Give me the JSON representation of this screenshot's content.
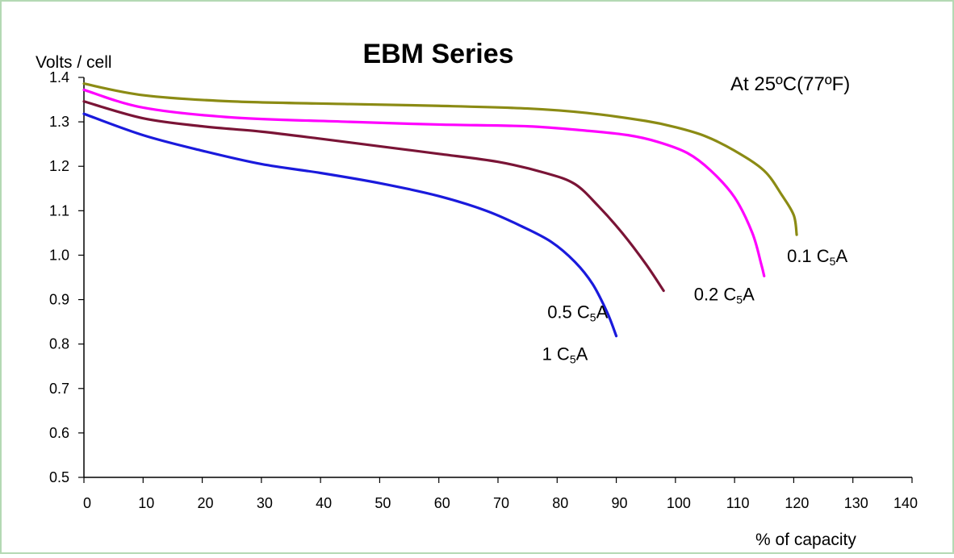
{
  "chart_data": {
    "type": "line",
    "title": "EBM Series",
    "annotation": "At 25ºC(77ºF)",
    "ylabel": "Volts / cell",
    "xlabel": "% of capacity",
    "xlim": [
      0,
      140
    ],
    "ylim": [
      0.5,
      1.4
    ],
    "xticks": [
      0,
      10,
      20,
      30,
      40,
      50,
      60,
      70,
      80,
      90,
      100,
      110,
      120,
      130,
      140
    ],
    "xtick_labels": [
      "0",
      "10",
      "20",
      "30",
      "40",
      "50",
      "60",
      "70",
      "80",
      "90",
      "100",
      "110",
      "120",
      "130",
      "140"
    ],
    "yticks": [
      0.5,
      0.6,
      0.7,
      0.8,
      0.9,
      1.0,
      1.1,
      1.2,
      1.3,
      1.4
    ],
    "ytick_labels": [
      "0.5",
      "0.6",
      "0.7",
      "0.8",
      "0.9",
      "1.0",
      "1.1",
      "1.2",
      "1.3",
      "1.4"
    ],
    "grid": false,
    "frame_color": "#b4d9b4",
    "series": [
      {
        "name": "0.1 C₅A",
        "label_main": "0.1 C",
        "label_sub": "5",
        "label_tail": "A",
        "color": "#8b8b14",
        "points": [
          [
            0,
            1.386
          ],
          [
            10,
            1.36
          ],
          [
            25,
            1.346
          ],
          [
            45,
            1.34
          ],
          [
            60,
            1.336
          ],
          [
            75,
            1.33
          ],
          [
            85,
            1.32
          ],
          [
            95,
            1.302
          ],
          [
            100,
            1.288
          ],
          [
            105,
            1.268
          ],
          [
            110,
            1.235
          ],
          [
            115,
            1.19
          ],
          [
            118,
            1.135
          ],
          [
            120,
            1.09
          ],
          [
            120.5,
            1.046
          ]
        ]
      },
      {
        "name": "0.2 C₅A",
        "label_main": "0.2 C",
        "label_sub": "5",
        "label_tail": "A",
        "color": "#ff00ff",
        "points": [
          [
            0,
            1.372
          ],
          [
            10,
            1.332
          ],
          [
            25,
            1.31
          ],
          [
            45,
            1.3
          ],
          [
            60,
            1.294
          ],
          [
            75,
            1.29
          ],
          [
            85,
            1.28
          ],
          [
            92,
            1.27
          ],
          [
            97,
            1.255
          ],
          [
            102,
            1.23
          ],
          [
            106,
            1.19
          ],
          [
            110,
            1.13
          ],
          [
            113,
            1.05
          ],
          [
            114.5,
            0.98
          ],
          [
            115,
            0.953
          ]
        ]
      },
      {
        "name": "0.5 C₅A",
        "label_main": "0.5 C",
        "label_sub": "5",
        "label_tail": "A",
        "color": "#7a1436",
        "points": [
          [
            0,
            1.346
          ],
          [
            10,
            1.308
          ],
          [
            20,
            1.29
          ],
          [
            30,
            1.278
          ],
          [
            40,
            1.262
          ],
          [
            50,
            1.245
          ],
          [
            60,
            1.228
          ],
          [
            70,
            1.21
          ],
          [
            78,
            1.185
          ],
          [
            83,
            1.16
          ],
          [
            87,
            1.11
          ],
          [
            91,
            1.05
          ],
          [
            95,
            0.98
          ],
          [
            98,
            0.92
          ]
        ]
      },
      {
        "name": "1 C₅A",
        "label_main": "1 C",
        "label_sub": "5",
        "label_tail": "A",
        "color": "#1a1adc",
        "points": [
          [
            0,
            1.318
          ],
          [
            10,
            1.27
          ],
          [
            20,
            1.235
          ],
          [
            30,
            1.205
          ],
          [
            40,
            1.185
          ],
          [
            50,
            1.162
          ],
          [
            60,
            1.133
          ],
          [
            68,
            1.1
          ],
          [
            74,
            1.065
          ],
          [
            79,
            1.03
          ],
          [
            83,
            0.985
          ],
          [
            86,
            0.935
          ],
          [
            88.5,
            0.87
          ],
          [
            90,
            0.818
          ]
        ]
      }
    ]
  }
}
